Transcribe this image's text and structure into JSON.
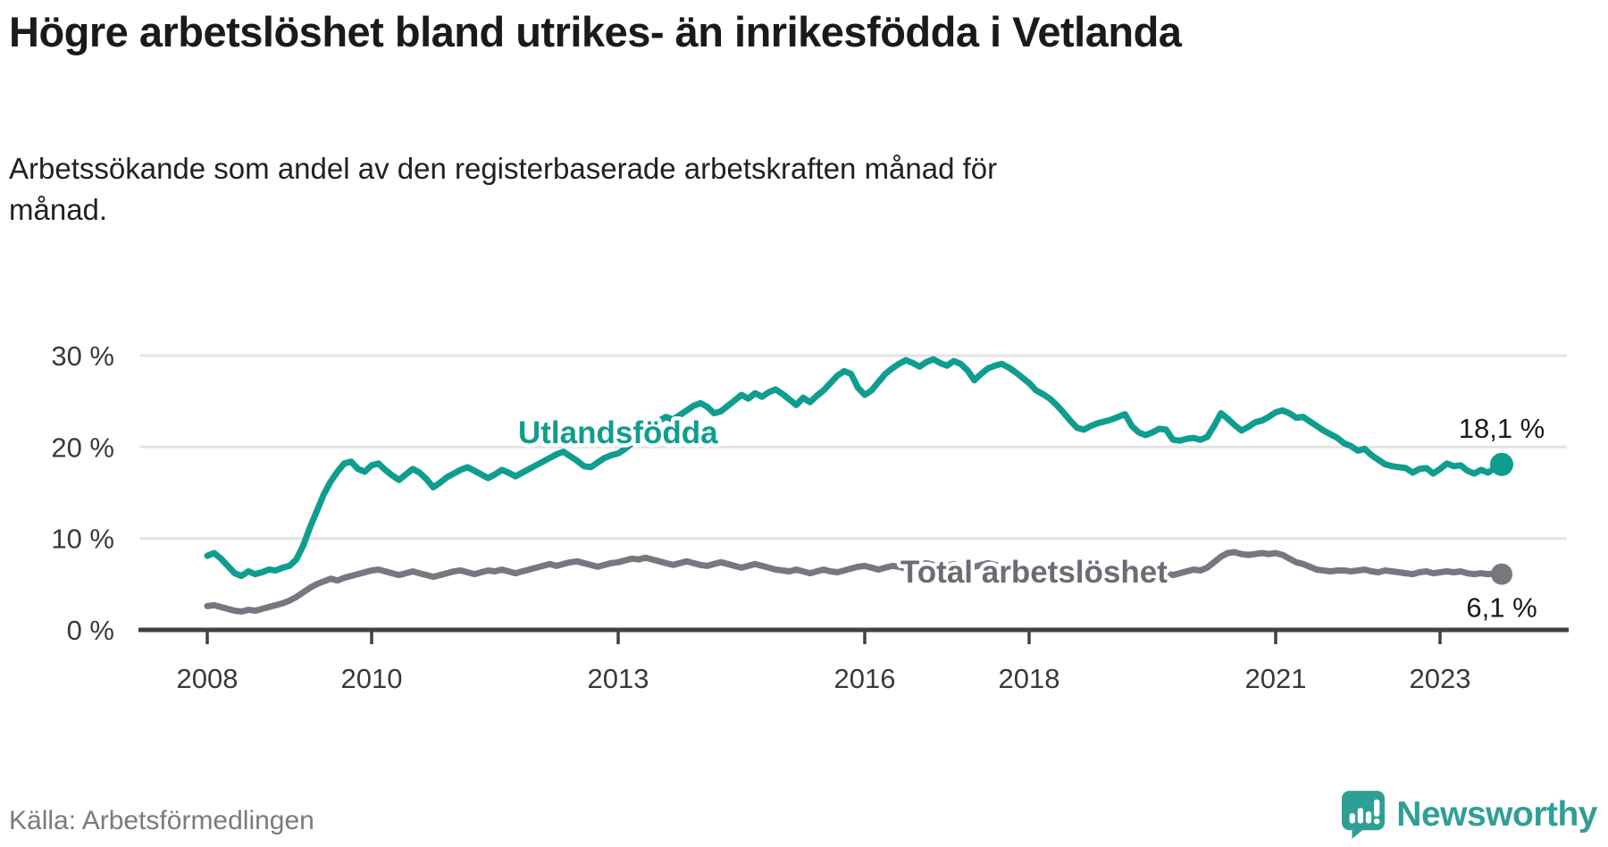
{
  "header": {
    "title": "Högre arbetslöshet bland utrikes- än inrikesfödda i Vetlanda",
    "subtitle": "Arbetssökande som andel av den registerbaserade arbetskraften månad för månad."
  },
  "footer": {
    "source": "Källa: Arbetsförmedlingen",
    "brand": "Newsworthy"
  },
  "chart_data": {
    "type": "line",
    "title": "Högre arbetslöshet bland utrikes- än inrikesfödda i Vetlanda",
    "subtitle": "Arbetssökande som andel av den registerbaserade arbetskraften månad för månad.",
    "source": "Arbetsförmedlingen",
    "x_unit": "month",
    "x_start": "2008-01",
    "x_end": "2023-10",
    "grid": "horizontal",
    "legend_position": "inline-labels",
    "y_axis": {
      "min": 0,
      "max": 30,
      "ticks": [
        {
          "value": 0,
          "label": "0 %"
        },
        {
          "value": 10,
          "label": "10 %"
        },
        {
          "value": 20,
          "label": "20 %"
        },
        {
          "value": 30,
          "label": "30 %"
        }
      ]
    },
    "x_ticks": [
      {
        "year": 2008,
        "label": "2008"
      },
      {
        "year": 2010,
        "label": "2010"
      },
      {
        "year": 2013,
        "label": "2013"
      },
      {
        "year": 2016,
        "label": "2016"
      },
      {
        "year": 2018,
        "label": "2018"
      },
      {
        "year": 2021,
        "label": "2021"
      },
      {
        "year": 2023,
        "label": "2023"
      }
    ],
    "series": [
      {
        "name": "Utlandsfödda",
        "color": "#0f9d8e",
        "end_label": "18,1 %",
        "end_value": 18.1,
        "values": [
          8.1,
          8.4,
          7.8,
          7.0,
          6.2,
          5.9,
          6.4,
          6.1,
          6.3,
          6.6,
          6.5,
          6.8,
          7.0,
          7.7,
          9.2,
          11.2,
          13.0,
          14.8,
          16.2,
          17.3,
          18.2,
          18.4,
          17.6,
          17.3,
          18.0,
          18.2,
          17.5,
          16.9,
          16.4,
          17.0,
          17.6,
          17.2,
          16.5,
          15.6,
          16.1,
          16.7,
          17.1,
          17.5,
          17.8,
          17.4,
          17.0,
          16.6,
          17.0,
          17.5,
          17.2,
          16.8,
          17.2,
          17.6,
          18.0,
          18.4,
          18.8,
          19.2,
          19.5,
          19.0,
          18.5,
          17.9,
          17.8,
          18.3,
          18.8,
          19.1,
          19.3,
          19.8,
          20.4,
          21.1,
          21.8,
          22.4,
          22.9,
          23.3,
          23.0,
          23.5,
          24.0,
          24.5,
          24.8,
          24.4,
          23.7,
          23.9,
          24.5,
          25.1,
          25.7,
          25.3,
          25.9,
          25.5,
          26.0,
          26.3,
          25.8,
          25.2,
          24.6,
          25.4,
          24.9,
          25.6,
          26.2,
          27.0,
          27.8,
          28.3,
          28.0,
          26.5,
          25.7,
          26.2,
          27.1,
          28.0,
          28.6,
          29.1,
          29.5,
          29.2,
          28.8,
          29.3,
          29.6,
          29.2,
          28.9,
          29.4,
          29.1,
          28.4,
          27.3,
          28.0,
          28.6,
          28.9,
          29.1,
          28.7,
          28.2,
          27.6,
          27.0,
          26.2,
          25.8,
          25.3,
          24.6,
          23.8,
          22.9,
          22.1,
          21.9,
          22.3,
          22.6,
          22.8,
          23.0,
          23.3,
          23.6,
          22.3,
          21.6,
          21.3,
          21.6,
          22.0,
          21.9,
          20.8,
          20.7,
          20.9,
          21.0,
          20.8,
          21.1,
          22.3,
          23.7,
          23.1,
          22.4,
          21.8,
          22.2,
          22.7,
          22.9,
          23.3,
          23.8,
          24.0,
          23.7,
          23.2,
          23.3,
          22.8,
          22.3,
          21.8,
          21.4,
          21.0,
          20.4,
          20.1,
          19.6,
          19.8,
          19.1,
          18.6,
          18.1,
          17.9,
          17.8,
          17.7,
          17.2,
          17.6,
          17.7,
          17.1,
          17.6,
          18.2,
          17.9,
          18.0,
          17.4,
          17.1,
          17.5,
          17.2,
          17.7,
          18.1
        ]
      },
      {
        "name": "Total arbetslöshet",
        "color": "#787780",
        "end_label": "6,1 %",
        "end_value": 6.1,
        "values": [
          2.6,
          2.7,
          2.5,
          2.3,
          2.1,
          2.0,
          2.2,
          2.1,
          2.3,
          2.5,
          2.7,
          2.9,
          3.2,
          3.6,
          4.1,
          4.6,
          5.0,
          5.3,
          5.6,
          5.4,
          5.7,
          5.9,
          6.1,
          6.3,
          6.5,
          6.6,
          6.4,
          6.2,
          6.0,
          6.2,
          6.4,
          6.2,
          6.0,
          5.8,
          6.0,
          6.2,
          6.4,
          6.5,
          6.3,
          6.1,
          6.3,
          6.5,
          6.4,
          6.6,
          6.4,
          6.2,
          6.4,
          6.6,
          6.8,
          7.0,
          7.2,
          7.0,
          7.2,
          7.4,
          7.5,
          7.3,
          7.1,
          6.9,
          7.1,
          7.3,
          7.4,
          7.6,
          7.8,
          7.7,
          7.9,
          7.7,
          7.5,
          7.3,
          7.1,
          7.3,
          7.5,
          7.3,
          7.1,
          7.0,
          7.2,
          7.4,
          7.2,
          7.0,
          6.8,
          7.0,
          7.2,
          7.0,
          6.8,
          6.6,
          6.5,
          6.4,
          6.6,
          6.4,
          6.2,
          6.4,
          6.6,
          6.4,
          6.3,
          6.5,
          6.7,
          6.9,
          7.0,
          6.8,
          6.6,
          6.8,
          7.0,
          6.9,
          6.7,
          6.9,
          7.1,
          7.3,
          7.1,
          6.9,
          7.0,
          7.2,
          7.0,
          6.8,
          6.9,
          7.1,
          7.3,
          7.1,
          6.9,
          6.7,
          6.8,
          6.6,
          6.7,
          6.9,
          6.7,
          6.5,
          6.4,
          6.2,
          6.0,
          6.2,
          6.4,
          6.6,
          6.5,
          6.4,
          6.5,
          6.7,
          6.5,
          6.3,
          6.1,
          6.0,
          6.2,
          6.4,
          6.2,
          6.0,
          6.2,
          6.4,
          6.6,
          6.5,
          6.8,
          7.4,
          8.0,
          8.4,
          8.5,
          8.3,
          8.2,
          8.3,
          8.4,
          8.3,
          8.4,
          8.2,
          7.8,
          7.4,
          7.2,
          6.9,
          6.6,
          6.5,
          6.4,
          6.5,
          6.5,
          6.4,
          6.5,
          6.6,
          6.4,
          6.3,
          6.5,
          6.4,
          6.3,
          6.2,
          6.1,
          6.3,
          6.4,
          6.2,
          6.3,
          6.4,
          6.3,
          6.4,
          6.2,
          6.1,
          6.2,
          6.1,
          6.2,
          6.1
        ]
      }
    ]
  }
}
